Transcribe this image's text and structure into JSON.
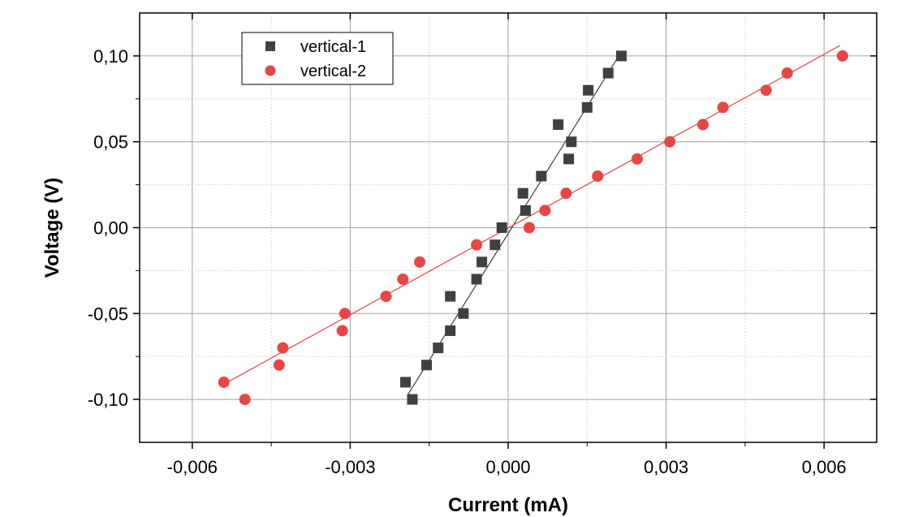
{
  "chart_data": {
    "type": "scatter",
    "xlabel": "Current (mA)",
    "ylabel": "Voltage (V)",
    "xlim": [
      -0.007,
      0.007
    ],
    "ylim": [
      -0.125,
      0.125
    ],
    "x_ticks": [
      -0.006,
      -0.003,
      0.0,
      0.003,
      0.006
    ],
    "x_tick_labels": [
      "-0,006",
      "-0,003",
      "0,000",
      "0,003",
      "0,006"
    ],
    "y_ticks": [
      -0.1,
      -0.05,
      0.0,
      0.05,
      0.1
    ],
    "y_tick_labels": [
      "-0,10",
      "-0,05",
      "0,00",
      "0,05",
      "0,10"
    ],
    "grid": true,
    "legend_position": "top-left",
    "series": [
      {
        "name": "vertical-1",
        "marker": "square",
        "color": "#404040",
        "points": [
          [
            -0.00195,
            -0.09
          ],
          [
            -0.00182,
            -0.1
          ],
          [
            -0.00155,
            -0.08
          ],
          [
            -0.00133,
            -0.07
          ],
          [
            -0.0011,
            -0.06
          ],
          [
            -0.0011,
            -0.04
          ],
          [
            -0.00085,
            -0.05
          ],
          [
            -0.0006,
            -0.03
          ],
          [
            -0.0005,
            -0.02
          ],
          [
            -0.00025,
            -0.01
          ],
          [
            -0.00012,
            0.0
          ],
          [
            0.00028,
            0.02
          ],
          [
            0.00033,
            0.01
          ],
          [
            0.00063,
            0.03
          ],
          [
            0.00095,
            0.06
          ],
          [
            0.00115,
            0.04
          ],
          [
            0.0012,
            0.05
          ],
          [
            0.0015,
            0.07
          ],
          [
            0.00152,
            0.08
          ],
          [
            0.0019,
            0.09
          ],
          [
            0.00215,
            0.1
          ]
        ],
        "fit_line": [
          [
            -0.0019,
            -0.097
          ],
          [
            0.0021,
            0.1
          ]
        ]
      },
      {
        "name": "vertical-2",
        "marker": "circle",
        "color": "#e84545",
        "points": [
          [
            -0.0054,
            -0.09
          ],
          [
            -0.005,
            -0.1
          ],
          [
            -0.00435,
            -0.08
          ],
          [
            -0.00428,
            -0.07
          ],
          [
            -0.00315,
            -0.06
          ],
          [
            -0.0031,
            -0.05
          ],
          [
            -0.00232,
            -0.04
          ],
          [
            -0.002,
            -0.03
          ],
          [
            -0.00168,
            -0.02
          ],
          [
            -0.0006,
            -0.01
          ],
          [
            0.0004,
            0.0
          ],
          [
            0.0007,
            0.01
          ],
          [
            0.0011,
            0.02
          ],
          [
            0.0017,
            0.03
          ],
          [
            0.00245,
            0.04
          ],
          [
            0.00307,
            0.05
          ],
          [
            0.0037,
            0.06
          ],
          [
            0.00408,
            0.07
          ],
          [
            0.0049,
            0.08
          ],
          [
            0.0053,
            0.09
          ],
          [
            0.00635,
            0.1
          ]
        ],
        "fit_line": [
          [
            -0.00545,
            -0.092
          ],
          [
            0.0063,
            0.106
          ]
        ]
      }
    ]
  }
}
